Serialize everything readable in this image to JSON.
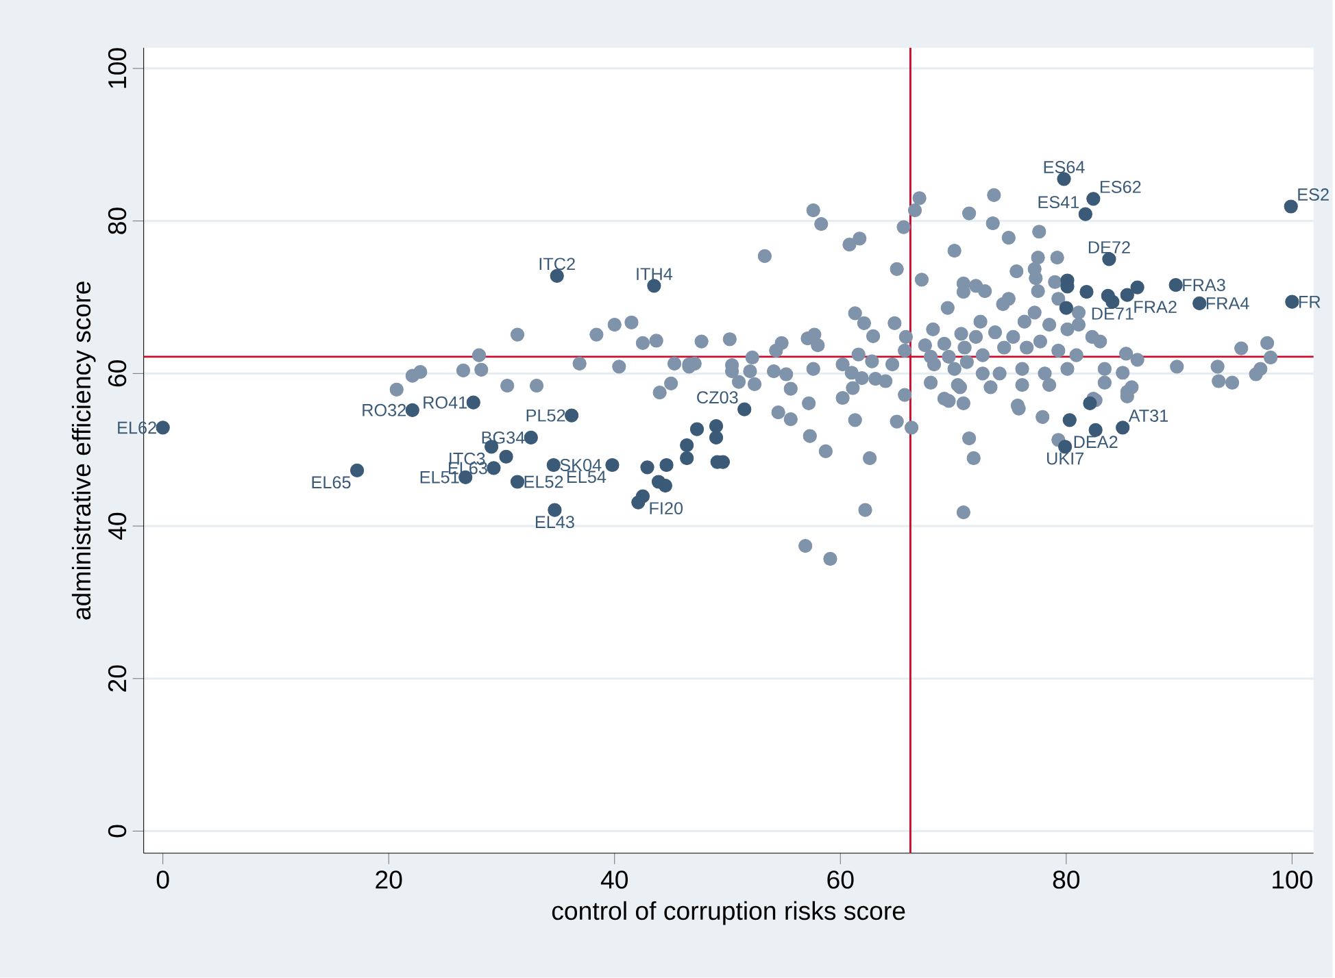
{
  "chart_data": {
    "type": "scatter",
    "xlabel": "control of corruption risks score",
    "ylabel": "administrative efficiency score",
    "xlim": [
      -1.7,
      101.9
    ],
    "ylim": [
      -2.9,
      102.7
    ],
    "xticks": [
      0,
      20,
      40,
      60,
      80,
      100
    ],
    "yticks": [
      0,
      20,
      40,
      60,
      80,
      100
    ],
    "grid": "y",
    "marker": "circle",
    "series": [
      {
        "color": "#7f93aa",
        "x": [
          67.0,
          66.6,
          57.6,
          58.3,
          71.4,
          65.6,
          61.7,
          60.8,
          53.3,
          70.1,
          65.0,
          67.2,
          70.9,
          70.9,
          72.0,
          69.5,
          61.3,
          62.1,
          64.8,
          62.9,
          65.8,
          68.2,
          70.7,
          47.7,
          50.2,
          54.8,
          57.1,
          57.7,
          58.0,
          54.3,
          52.2,
          61.6,
          65.7,
          67.5,
          69.2,
          46.6,
          50.4,
          52.0,
          54.1,
          55.2,
          57.6,
          60.2,
          61.0,
          62.8,
          61.9,
          63.1,
          64.0,
          64.6,
          68.0,
          68.3,
          69.6,
          70.1,
          71.2,
          68.0,
          51.0,
          52.4,
          55.6,
          61.1,
          60.2,
          65.7,
          57.2,
          69.6,
          70.6,
          70.9,
          54.5,
          55.6,
          61.3,
          65.0,
          66.3,
          57.3,
          58.7,
          62.6,
          71.4,
          71.8,
          62.2,
          70.9,
          56.9,
          59.1,
          31.4,
          38.4,
          40.0,
          41.5,
          42.5,
          43.7,
          28.0,
          26.6,
          28.2,
          36.9,
          40.4,
          45.3,
          46.6,
          47.1,
          50.4,
          22.1,
          22.8,
          20.7,
          30.5,
          33.1,
          44.0,
          45.0,
          73.6,
          73.5,
          74.9,
          77.6,
          77.5,
          79.2,
          75.6,
          77.2,
          77.3,
          79.0,
          72.8,
          77.5,
          74.9,
          79.3,
          74.4,
          77.2,
          81.1,
          72.4,
          76.3,
          78.5,
          80.1,
          81.1,
          73.7,
          72.0,
          75.3,
          82.3,
          77.7,
          83.0,
          74.5,
          71.0,
          76.5,
          79.3,
          80.9,
          85.3,
          86.3,
          95.5,
          97.8,
          98.1,
          89.8,
          93.4,
          93.5,
          94.7,
          96.8,
          97.2,
          85.0,
          83.4,
          83.4,
          85.8,
          85.4,
          72.6,
          72.6,
          74.1,
          76.1,
          78.1,
          80.1,
          76.1,
          78.5,
          70.4,
          73.3,
          69.2,
          75.7,
          82.4,
          75.8,
          77.9,
          79.3,
          82.6,
          85.4
        ],
        "values": [
          83.0,
          81.4,
          81.4,
          79.6,
          81.0,
          79.2,
          77.7,
          76.9,
          75.4,
          76.1,
          73.7,
          72.3,
          71.8,
          70.7,
          71.5,
          68.6,
          67.9,
          66.6,
          66.6,
          64.9,
          64.8,
          65.8,
          65.2,
          64.2,
          64.5,
          64.0,
          64.6,
          65.1,
          63.7,
          63.0,
          62.1,
          62.5,
          63.0,
          63.7,
          63.9,
          61.2,
          61.1,
          60.3,
          60.3,
          59.9,
          60.6,
          61.2,
          60.1,
          61.6,
          59.4,
          59.3,
          59.0,
          61.2,
          62.2,
          61.2,
          62.2,
          60.6,
          61.5,
          58.8,
          58.9,
          58.6,
          58.0,
          58.1,
          56.8,
          57.2,
          56.1,
          56.4,
          58.2,
          56.1,
          54.9,
          54.0,
          53.9,
          53.7,
          52.9,
          51.8,
          49.8,
          48.9,
          51.5,
          48.9,
          42.1,
          41.8,
          37.4,
          35.7,
          65.1,
          65.1,
          66.4,
          66.7,
          64.0,
          64.3,
          62.4,
          60.4,
          60.5,
          61.3,
          60.9,
          61.3,
          60.9,
          61.3,
          60.3,
          59.7,
          60.2,
          57.9,
          58.4,
          58.4,
          57.5,
          58.7,
          83.4,
          79.7,
          77.8,
          78.6,
          75.2,
          75.2,
          73.4,
          73.7,
          72.5,
          72.0,
          70.8,
          70.8,
          69.8,
          69.8,
          69.1,
          68.0,
          68.0,
          66.8,
          66.8,
          66.4,
          65.8,
          66.4,
          65.4,
          64.8,
          64.8,
          64.8,
          64.2,
          64.2,
          63.4,
          63.4,
          63.4,
          63.0,
          62.4,
          62.6,
          61.8,
          63.3,
          64.0,
          62.1,
          60.9,
          60.9,
          59.0,
          58.8,
          59.9,
          60.6,
          60.1,
          60.6,
          58.8,
          58.2,
          57.0,
          62.4,
          60.0,
          60.0,
          60.6,
          60.0,
          60.6,
          58.5,
          58.5,
          58.5,
          58.2,
          56.7,
          55.8,
          56.7,
          55.4,
          54.3,
          51.3,
          56.5,
          57.6
        ]
      },
      {
        "color": "#3b5a78",
        "x": [
          0.0,
          17.2,
          22.1,
          27.5,
          34.9,
          43.5,
          36.2,
          32.6,
          29.1,
          29.3,
          26.8,
          31.4,
          34.6,
          34.7,
          39.8,
          42.5,
          51.5,
          79.8,
          82.4,
          81.7,
          99.9,
          100.0,
          91.8,
          89.7,
          85.4,
          84.1,
          83.8,
          85.0,
          82.6,
          79.9,
          30.4,
          42.1,
          42.9,
          44.6,
          43.9,
          44.5,
          46.4,
          46.4,
          47.3,
          49.0,
          49.0,
          49.1,
          49.6,
          86.3,
          83.7,
          81.8,
          80.1,
          80.1,
          80.0,
          80.3,
          82.1
        ],
        "values": [
          52.9,
          47.3,
          55.2,
          56.2,
          72.8,
          71.5,
          54.5,
          51.6,
          50.4,
          47.6,
          46.4,
          45.8,
          48.0,
          42.1,
          48.0,
          43.9,
          55.3,
          85.5,
          82.9,
          80.9,
          81.9,
          69.4,
          69.2,
          71.6,
          70.3,
          69.4,
          75.0,
          52.9,
          52.6,
          50.4,
          49.1,
          43.1,
          47.7,
          48.0,
          45.8,
          45.3,
          50.6,
          48.9,
          52.7,
          53.1,
          51.6,
          48.4,
          48.4,
          71.3,
          70.2,
          70.7,
          72.2,
          71.4,
          68.6,
          53.9,
          56.1
        ]
      }
    ],
    "ref_lines": [
      {
        "axis": "x",
        "value": 66.2,
        "color": "#c8102e"
      },
      {
        "axis": "y",
        "value": 62.2,
        "color": "#c8102e"
      }
    ],
    "annotations": [
      {
        "text": "EL62",
        "x": 0.0,
        "y": 52.9
      },
      {
        "text": "EL65",
        "x": 17.2,
        "y": 47.3
      },
      {
        "text": "RO32",
        "x": 22.1,
        "y": 55.2
      },
      {
        "text": "RO41",
        "x": 27.5,
        "y": 56.2
      },
      {
        "text": "ITC2",
        "x": 34.9,
        "y": 72.8
      },
      {
        "text": "ITH4",
        "x": 43.5,
        "y": 71.5
      },
      {
        "text": "PL52",
        "x": 36.2,
        "y": 54.5
      },
      {
        "text": "BG34",
        "x": 32.6,
        "y": 51.6
      },
      {
        "text": "ITC3",
        "x": 29.1,
        "y": 50.4
      },
      {
        "text": "EL63",
        "x": 29.3,
        "y": 47.6
      },
      {
        "text": "EL51",
        "x": 26.8,
        "y": 46.4
      },
      {
        "text": "EL52",
        "x": 31.4,
        "y": 45.8
      },
      {
        "text": "SK04",
        "x": 34.6,
        "y": 48.0
      },
      {
        "text": "EL43",
        "x": 34.7,
        "y": 42.1
      },
      {
        "text": "EL54",
        "x": 39.8,
        "y": 48.0
      },
      {
        "text": "FI20",
        "x": 42.5,
        "y": 43.9
      },
      {
        "text": "CZ03",
        "x": 51.5,
        "y": 55.3
      },
      {
        "text": "ES64",
        "x": 79.8,
        "y": 85.5
      },
      {
        "text": "ES62",
        "x": 82.4,
        "y": 82.9
      },
      {
        "text": "ES41",
        "x": 81.7,
        "y": 80.9
      },
      {
        "text": "ES2",
        "x": 99.9,
        "y": 81.9
      },
      {
        "text": "FR",
        "x": 100.0,
        "y": 69.4
      },
      {
        "text": "FRA4",
        "x": 91.8,
        "y": 69.2
      },
      {
        "text": "FRA3",
        "x": 89.7,
        "y": 71.6
      },
      {
        "text": "FRA2",
        "x": 85.4,
        "y": 70.3
      },
      {
        "text": "DE71",
        "x": 84.1,
        "y": 69.4
      },
      {
        "text": "DE72",
        "x": 83.8,
        "y": 75.0
      },
      {
        "text": "AT31",
        "x": 85.0,
        "y": 52.9
      },
      {
        "text": "DEA2",
        "x": 82.6,
        "y": 52.6
      },
      {
        "text": "UKI7",
        "x": 79.9,
        "y": 50.4
      }
    ]
  }
}
